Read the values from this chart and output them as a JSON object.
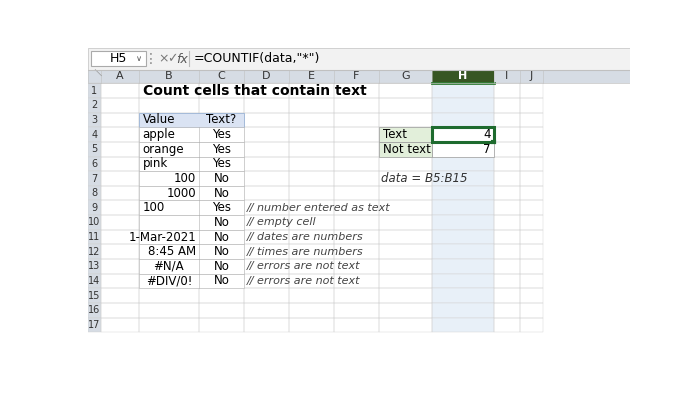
{
  "formula_bar_cell": "H5",
  "formula_bar_formula": "=COUNTIF(data,\"*\")",
  "title": "Count cells that contain text",
  "col_headers": [
    "A",
    "B",
    "C",
    "D",
    "E",
    "F",
    "G",
    "H",
    "I",
    "J"
  ],
  "row_headers": [
    "1",
    "2",
    "3",
    "4",
    "5",
    "6",
    "7",
    "8",
    "9",
    "10",
    "11",
    "12",
    "13",
    "14",
    "15",
    "16",
    "17"
  ],
  "main_table_header": [
    "Value",
    "Text?"
  ],
  "main_table_rows": [
    [
      "apple",
      "Yes"
    ],
    [
      "orange",
      "Yes"
    ],
    [
      "pink",
      "Yes"
    ],
    [
      "100",
      "No"
    ],
    [
      "1000",
      "No"
    ],
    [
      "100",
      "Yes"
    ],
    [
      "",
      "No"
    ],
    [
      "1-Mar-2021",
      "No"
    ],
    [
      "8:45 AM",
      "No"
    ],
    [
      "#N/A",
      "No"
    ],
    [
      "#DIV/0!",
      "No"
    ]
  ],
  "main_table_row_align": [
    "left",
    "left",
    "left",
    "right",
    "right",
    "left",
    "left",
    "right",
    "right",
    "center",
    "center"
  ],
  "comments": [
    "",
    "",
    "",
    "",
    "",
    "// number entered as text",
    "// empty cell",
    "// dates are numbers",
    "// times are numbers",
    "// errors are not text",
    "// errors are not text"
  ],
  "summary_table": [
    [
      "Text",
      "4"
    ],
    [
      "Not text",
      "7"
    ]
  ],
  "data_label": "data = B5:B15",
  "header_bg": "#d6dce4",
  "table_header_bg": "#dae3f3",
  "summary_label_bg": "#e2efda",
  "summary_value_bg": "#ffffff",
  "selected_col_bg": "#b8cce4",
  "selected_header_bg": "#375623",
  "bg_color": "#ffffff",
  "grid_color": "#d0d0d0",
  "formula_bar_bg": "#ffffff",
  "top_bar_bg": "#f2f2f2",
  "border_color": "#c0c0c0"
}
